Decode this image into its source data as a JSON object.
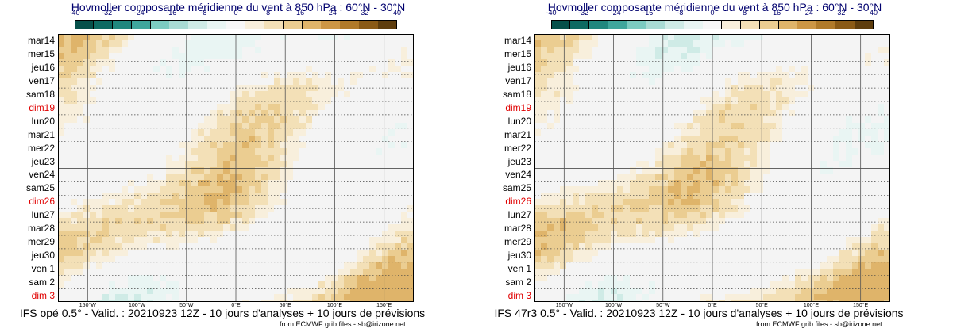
{
  "chart_data": [
    {
      "type": "heatmap",
      "title": "Hovmoller composante méridienne du vent à 850 hPa : 60°N - 30°N",
      "footer": "IFS opé 0.5° - Valid. : 20210923 12Z - 10 jours d'analyses + 10 jours de prévisions",
      "credit": "from ECMWF grib files - sb@irizone.net",
      "colorbar_ticks": [
        "-40",
        "-32",
        "-24",
        "-16",
        "-8",
        "0",
        "8",
        "16",
        "24",
        "32",
        "40"
      ],
      "y_labels": [
        "mar14",
        "mer15",
        "jeu16",
        "ven17",
        "sam18",
        "dim19",
        "lun20",
        "mar21",
        "mer22",
        "jeu23",
        "ven24",
        "sam25",
        "dim26",
        "lun27",
        "mar28",
        "mer29",
        "jeu30",
        "ven 1",
        "sam 2",
        "dim 3"
      ],
      "sundays": [
        "dim19",
        "dim26",
        "dim 3"
      ],
      "x_labels": [
        "150°W",
        "100°W",
        "50°W",
        "0°E",
        "50°E",
        "100°E",
        "150°E"
      ],
      "analysis_forecast_split": "ven24"
    },
    {
      "type": "heatmap",
      "title": "Hovmoller composante méridienne du vent à 850 hPa : 60°N - 30°N",
      "footer": "IFS 47r3 0.5° - Valid. : 20210923 12Z - 10 jours d'analyses + 10 jours de prévisions",
      "credit": "from ECMWF grib files - sb@irizone.net",
      "colorbar_ticks": [
        "-40",
        "-32",
        "-24",
        "-16",
        "-8",
        "0",
        "8",
        "16",
        "24",
        "32",
        "40"
      ],
      "y_labels": [
        "mar14",
        "mer15",
        "jeu16",
        "ven17",
        "sam18",
        "dim19",
        "lun20",
        "mar21",
        "mer22",
        "jeu23",
        "ven24",
        "sam25",
        "dim26",
        "lun27",
        "mar28",
        "mer29",
        "jeu30",
        "ven 1",
        "sam 2",
        "dim 3"
      ],
      "sundays": [
        "dim19",
        "dim26",
        "dim 3"
      ],
      "x_labels": [
        "150°W",
        "100°W",
        "50°W",
        "0°E",
        "50°E",
        "100°E",
        "150°E"
      ],
      "analysis_forecast_split": "ven24"
    }
  ],
  "colors": {
    "palette": [
      "#06504a",
      "#0d6a62",
      "#20877e",
      "#3fa69c",
      "#7ccbc1",
      "#a9dbd4",
      "#cfebe6",
      "#e9f5f3",
      "#f7f7f7",
      "#f8efdc",
      "#f3e0b7",
      "#ebcd91",
      "#dfb46a",
      "#cc9645",
      "#b07a2a",
      "#8a5a16",
      "#5e3d0d"
    ],
    "title": "#00006e",
    "sunday": "#e00000"
  }
}
